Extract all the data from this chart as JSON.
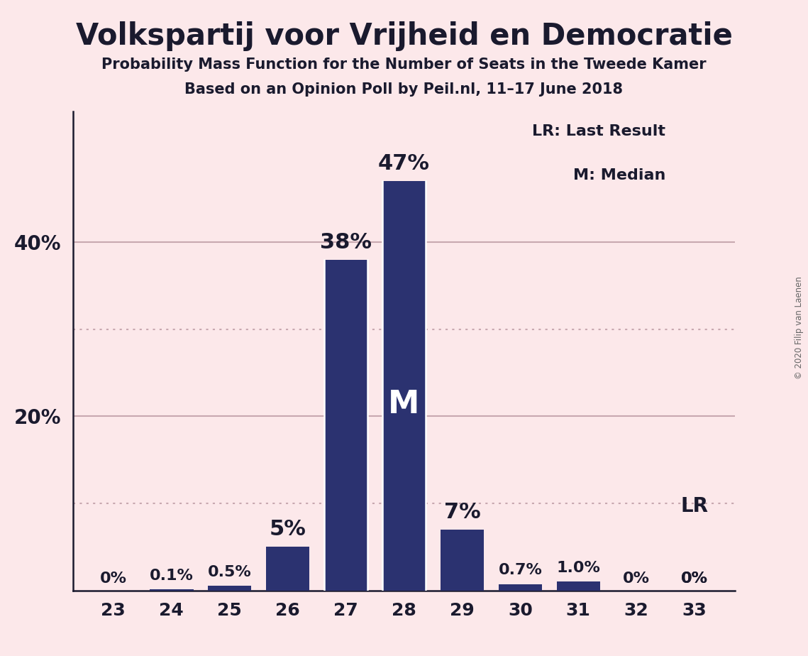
{
  "title": "Volkspartij voor Vrijheid en Democratie",
  "subtitle1": "Probability Mass Function for the Number of Seats in the Tweede Kamer",
  "subtitle2": "Based on an Opinion Poll by Peil.nl, 11–17 June 2018",
  "copyright": "© 2020 Filip van Laenen",
  "categories": [
    23,
    24,
    25,
    26,
    27,
    28,
    29,
    30,
    31,
    32,
    33
  ],
  "values": [
    0.0,
    0.1,
    0.5,
    5.0,
    38.0,
    47.0,
    7.0,
    0.7,
    1.0,
    0.0,
    0.0
  ],
  "labels": [
    "0%",
    "0.1%",
    "0.5%",
    "5%",
    "38%",
    "47%",
    "7%",
    "0.7%",
    "1.0%",
    "0%",
    "0%"
  ],
  "bar_color": "#2b3270",
  "background_color": "#fce8ea",
  "axis_color": "#1a1a2e",
  "grid_color": "#c8a8b0",
  "median_bar_index": 5,
  "median_label": "M",
  "lr_bar_index": 10,
  "lr_label": "LR",
  "legend_lr": "LR: Last Result",
  "legend_m": "M: Median",
  "ylim": [
    0,
    55
  ],
  "ytick_vals": [
    20,
    40
  ],
  "ytick_labels": [
    "20%",
    "40%"
  ],
  "dotted_lines": [
    10,
    30
  ],
  "solid_lines": [
    20,
    40
  ],
  "bar_width": 0.75
}
